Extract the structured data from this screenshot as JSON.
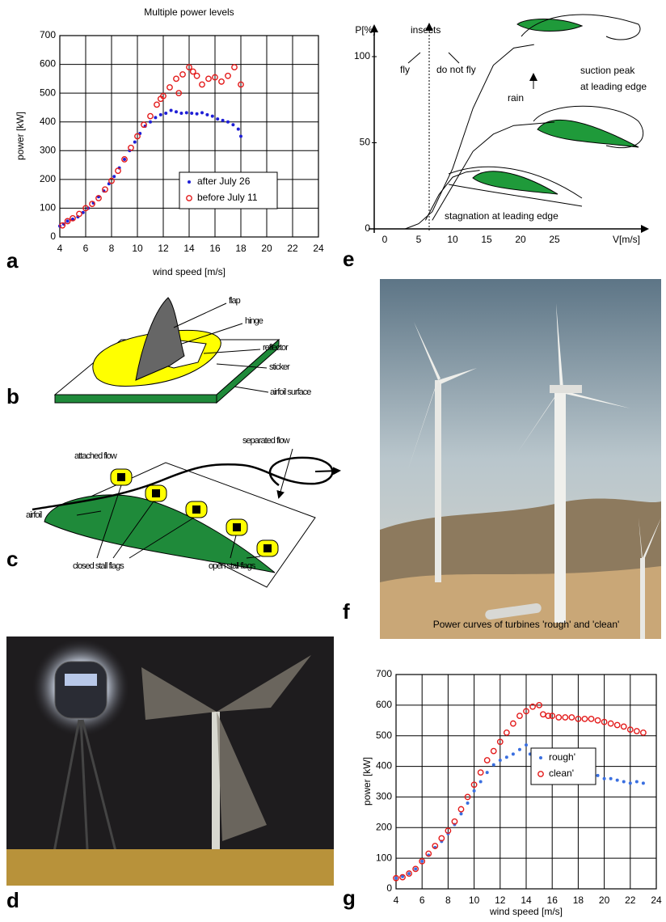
{
  "panel_labels": [
    "a",
    "b",
    "c",
    "d",
    "e",
    "f",
    "g"
  ],
  "chart_data": [
    {
      "type": "scatter",
      "title": "Multiple power levels",
      "xlabel": "wind speed [m/s]",
      "ylabel": "power [kW]",
      "xlim": [
        4,
        24
      ],
      "xticks": [
        4,
        6,
        8,
        10,
        12,
        14,
        16,
        18,
        20,
        22,
        24
      ],
      "ylim": [
        0,
        700
      ],
      "yticks": [
        0,
        100,
        200,
        300,
        400,
        500,
        600,
        700
      ],
      "grid": true,
      "legend": "lower right",
      "series": [
        {
          "name": "after July 26",
          "color": "#1f1fd6",
          "marker": "dot",
          "x": [
            4,
            4.3,
            4.6,
            5,
            5.4,
            5.8,
            6.2,
            6.6,
            7,
            7.4,
            7.8,
            8.2,
            8.6,
            9,
            9.4,
            9.8,
            10.2,
            10.6,
            11,
            11.4,
            11.8,
            12.2,
            12.6,
            13,
            13.4,
            13.8,
            14.2,
            14.6,
            15,
            15.4,
            15.8,
            16.2,
            16.6,
            17,
            17.4,
            17.8,
            18
          ],
          "values": [
            38,
            45,
            55,
            62,
            70,
            85,
            100,
            118,
            140,
            160,
            185,
            210,
            240,
            270,
            300,
            330,
            360,
            385,
            400,
            415,
            425,
            430,
            440,
            435,
            430,
            432,
            430,
            428,
            432,
            425,
            420,
            410,
            405,
            400,
            390,
            375,
            350
          ]
        },
        {
          "name": "before July 11",
          "color": "#e31a1a",
          "marker": "circle",
          "x": [
            4.2,
            4.6,
            5,
            5.5,
            6,
            6.5,
            7,
            7.5,
            8,
            8.5,
            9,
            9.5,
            10,
            10.5,
            11,
            11.5,
            11.8,
            12,
            12.5,
            13,
            13.2,
            13.5,
            14,
            14.3,
            14.6,
            15,
            15.5,
            16,
            16.5,
            17,
            17.5,
            18
          ],
          "values": [
            40,
            55,
            65,
            80,
            100,
            115,
            135,
            165,
            195,
            230,
            270,
            310,
            350,
            390,
            420,
            460,
            480,
            490,
            520,
            550,
            500,
            565,
            590,
            575,
            560,
            530,
            550,
            555,
            540,
            560,
            590,
            530
          ]
        }
      ]
    },
    {
      "type": "line",
      "xlabel": "V[m/s]",
      "ylabel": "P[%]",
      "xlim": [
        0,
        25
      ],
      "xticks": [
        0,
        5,
        10,
        15,
        20,
        25
      ],
      "ylim": [
        0,
        100
      ],
      "yticks": [
        0,
        50,
        100
      ],
      "grid": false,
      "annotations": [
        "insects",
        "fly",
        "do not fly",
        "rain",
        "suction peak",
        "at leading edge",
        "stagnation at leading edge"
      ],
      "series": [
        {
          "color": "#000000",
          "x": [
            3,
            5,
            7,
            10,
            13,
            16,
            19,
            22
          ],
          "values": [
            0,
            3,
            10,
            35,
            70,
            95,
            105,
            107
          ]
        },
        {
          "color": "#000000",
          "x": [
            7,
            10,
            13,
            16,
            19,
            22,
            25
          ],
          "values": [
            5,
            25,
            45,
            55,
            60,
            61,
            62
          ]
        },
        {
          "color": "#000000",
          "x": [
            6,
            8,
            10,
            12,
            14
          ],
          "values": [
            5,
            20,
            30,
            33,
            34
          ]
        }
      ]
    },
    {
      "type": "scatter",
      "title": "Power curves of turbines 'rough' and  'clean'",
      "xlabel": "wind speed [m/s]",
      "ylabel": "power [kW]",
      "xlim": [
        4,
        24
      ],
      "xticks": [
        4,
        6,
        8,
        10,
        12,
        14,
        16,
        18,
        20,
        22,
        24
      ],
      "ylim": [
        0,
        700
      ],
      "yticks": [
        0,
        100,
        200,
        300,
        400,
        500,
        600,
        700
      ],
      "grid": true,
      "legend": "lower right",
      "series": [
        {
          "name": "rough'",
          "color": "#3a6fe0",
          "marker": "dot",
          "x": [
            4,
            4.5,
            5,
            5.5,
            6,
            6.5,
            7,
            7.5,
            8,
            8.5,
            9,
            9.5,
            10,
            10.5,
            11,
            11.5,
            12,
            12.5,
            13,
            13.5,
            14,
            14.3,
            14.6,
            15,
            15.5,
            16,
            16.5,
            17,
            17.5,
            18,
            18.5,
            19,
            19.5,
            20,
            20.5,
            21,
            21.5,
            22,
            22.5,
            23
          ],
          "values": [
            35,
            40,
            50,
            65,
            90,
            110,
            135,
            155,
            180,
            210,
            245,
            280,
            320,
            350,
            380,
            405,
            420,
            430,
            440,
            455,
            470,
            440,
            420,
            410,
            400,
            395,
            390,
            385,
            380,
            375,
            370,
            365,
            370,
            360,
            360,
            355,
            350,
            345,
            350,
            345
          ]
        },
        {
          "name": "clean'",
          "color": "#e31a1a",
          "marker": "circle",
          "x": [
            4,
            4.5,
            5,
            5.5,
            6,
            6.5,
            7,
            7.5,
            8,
            8.5,
            9,
            9.5,
            10,
            10.5,
            11,
            11.5,
            12,
            12.5,
            13,
            13.5,
            14,
            14.5,
            15,
            15.3,
            15.7,
            16,
            16.5,
            17,
            17.5,
            18,
            18.5,
            19,
            19.5,
            20,
            20.5,
            21,
            21.5,
            22,
            22.5,
            23
          ],
          "values": [
            35,
            38,
            50,
            65,
            90,
            115,
            140,
            165,
            190,
            220,
            260,
            300,
            340,
            380,
            420,
            450,
            480,
            510,
            540,
            565,
            580,
            595,
            600,
            570,
            565,
            565,
            560,
            560,
            560,
            555,
            555,
            555,
            550,
            545,
            540,
            535,
            530,
            520,
            515,
            510
          ]
        }
      ]
    }
  ],
  "diagram_b": {
    "labels": [
      "flap",
      "hinge",
      "reflector",
      "sticker",
      "airfoil surface"
    ]
  },
  "diagram_c": {
    "labels": [
      "attached flow",
      "separated flow",
      "airfoil",
      "closed stall flags",
      "open stall flags"
    ]
  }
}
